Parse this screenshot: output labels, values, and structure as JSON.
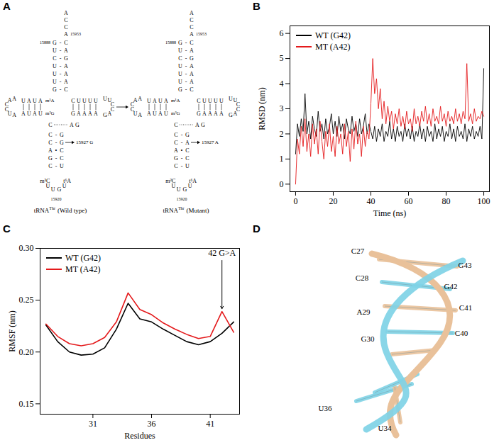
{
  "chart_data": [
    {
      "type": "line",
      "panel_label": "B",
      "xlabel": "Time (ns)",
      "ylabel": "RMSD (nm)",
      "xlim": [
        -3,
        103
      ],
      "xticks": [
        0,
        20,
        40,
        60,
        80,
        100
      ],
      "ylim": [
        -0.3,
        6.3
      ],
      "yticks": [
        0,
        1,
        2,
        3,
        4,
        5,
        6
      ],
      "grid": false,
      "legend": "top-left",
      "x": [
        0,
        1,
        2,
        3,
        4,
        5,
        6,
        7,
        8,
        9,
        10,
        11,
        12,
        13,
        14,
        15,
        16,
        17,
        18,
        19,
        20,
        21,
        22,
        23,
        24,
        25,
        26,
        27,
        28,
        29,
        30,
        31,
        32,
        33,
        34,
        35,
        36,
        37,
        38,
        39,
        40,
        41,
        42,
        43,
        44,
        45,
        46,
        47,
        48,
        49,
        50,
        51,
        52,
        53,
        54,
        55,
        56,
        57,
        58,
        59,
        60,
        61,
        62,
        63,
        64,
        65,
        66,
        67,
        68,
        69,
        70,
        71,
        72,
        73,
        74,
        75,
        76,
        77,
        78,
        79,
        80,
        81,
        82,
        83,
        84,
        85,
        86,
        87,
        88,
        89,
        90,
        91,
        92,
        93,
        94,
        95,
        96,
        97,
        98,
        99,
        100
      ],
      "series": [
        {
          "name": "WT (G42)",
          "color": "#000000",
          "values": [
            1.2,
            2.4,
            1.9,
            2.6,
            2.1,
            3.6,
            2.0,
            2.5,
            1.8,
            2.7,
            2.2,
            1.9,
            2.9,
            2.1,
            2.4,
            1.8,
            2.6,
            2.0,
            2.3,
            2.8,
            2.0,
            2.5,
            1.9,
            2.7,
            2.1,
            2.4,
            1.8,
            2.6,
            2.2,
            2.0,
            2.7,
            2.1,
            2.4,
            1.9,
            2.6,
            2.0,
            2.3,
            2.8,
            2.0,
            2.4,
            2.1,
            1.8,
            2.3,
            1.7,
            2.2,
            1.9,
            2.4,
            1.7,
            2.1,
            1.9,
            2.5,
            1.8,
            2.2,
            1.7,
            2.3,
            1.9,
            2.1,
            1.7,
            2.4,
            1.9,
            2.2,
            1.8,
            2.3,
            1.7,
            2.1,
            1.9,
            2.4,
            1.8,
            2.2,
            1.7,
            2.3,
            1.9,
            2.1,
            1.7,
            2.4,
            1.8,
            2.2,
            1.9,
            2.3,
            1.7,
            2.1,
            1.9,
            2.4,
            1.8,
            2.2,
            1.7,
            2.3,
            1.9,
            2.1,
            1.8,
            2.4,
            1.7,
            2.2,
            1.9,
            2.3,
            1.8,
            2.1,
            1.9,
            2.3,
            1.8,
            4.6
          ]
        },
        {
          "name": "MT (A42)",
          "color": "#e41a1c",
          "values": [
            0,
            1.8,
            1.2,
            2.3,
            1.5,
            2.6,
            1.3,
            2.0,
            1.1,
            2.4,
            1.6,
            2.2,
            1.2,
            2.5,
            1.7,
            1.0,
            2.1,
            1.5,
            2.4,
            1.3,
            1.9,
            1.1,
            2.3,
            1.6,
            2.0,
            1.2,
            2.4,
            1.5,
            2.1,
            0.9,
            2.2,
            1.4,
            2.5,
            1.6,
            2.0,
            1.1,
            2.3,
            1.5,
            2.1,
            1.8,
            3.2,
            5.0,
            3.6,
            4.2,
            3.0,
            3.8,
            2.6,
            3.3,
            2.4,
            3.1,
            2.5,
            2.9,
            2.2,
            2.8,
            2.4,
            3.0,
            2.3,
            2.7,
            2.2,
            2.9,
            2.4,
            2.6,
            2.1,
            3.0,
            2.4,
            2.7,
            2.3,
            2.9,
            2.5,
            3.1,
            2.4,
            2.8,
            2.3,
            3.0,
            2.5,
            2.7,
            2.4,
            3.1,
            2.5,
            2.8,
            2.3,
            2.9,
            2.5,
            2.7,
            2.4,
            3.0,
            2.5,
            2.8,
            2.4,
            2.9,
            2.6,
            4.8,
            2.5,
            2.8,
            2.4,
            3.0,
            2.5,
            2.7,
            2.6,
            2.9,
            2.7
          ]
        }
      ]
    },
    {
      "type": "line",
      "panel_label": "C",
      "xlabel": "Residues",
      "ylabel": "RMSF (nm)",
      "xlim": [
        26.5,
        43.5
      ],
      "xticks": [
        31,
        36,
        41
      ],
      "ylim": [
        0.14,
        0.3
      ],
      "yticks": [
        0.15,
        {
          "value": 0.2,
          "label": "0.20"
        },
        0.25,
        {
          "value": 0.3,
          "label": "0.30"
        }
      ],
      "grid": false,
      "legend": "top-left",
      "x": [
        27,
        28,
        29,
        30,
        31,
        32,
        33,
        34,
        35,
        36,
        37,
        38,
        39,
        40,
        41,
        42,
        43
      ],
      "series": [
        {
          "name": "WT (G42)",
          "color": "#000000",
          "values": [
            0.226,
            0.21,
            0.2,
            0.197,
            0.198,
            0.204,
            0.222,
            0.247,
            0.232,
            0.229,
            0.222,
            0.216,
            0.21,
            0.207,
            0.21,
            0.218,
            0.229
          ]
        },
        {
          "name": "MT (A42)",
          "color": "#e41a1c",
          "values": [
            0.227,
            0.215,
            0.208,
            0.206,
            0.208,
            0.214,
            0.229,
            0.257,
            0.241,
            0.236,
            0.228,
            0.222,
            0.217,
            0.213,
            0.215,
            0.239,
            0.219
          ]
        }
      ],
      "annotations": [
        {
          "text": "42 G>A",
          "x": 42
        }
      ]
    }
  ],
  "tRNA_diagram": {
    "panel_label": "A",
    "trnas": [
      {
        "name": "tRNA",
        "name_superscript": "Thr",
        "caption": "(Wild type)",
        "acceptor_tail": [
          "A",
          "C",
          "C",
          "A"
        ],
        "tail_number": "15953",
        "stem_start_number": "15888",
        "acceptor_pairs": [
          [
            "G",
            "-",
            "C"
          ],
          [
            "U",
            "-",
            "A"
          ],
          [
            "C",
            "-",
            "G"
          ],
          [
            "U",
            "-",
            "A"
          ],
          [
            "U",
            "-",
            "A"
          ],
          [
            "U",
            "-",
            "A"
          ],
          [
            "G",
            "-",
            "C"
          ]
        ],
        "d_stem_top": [
          "U",
          "A",
          "U",
          "A"
        ],
        "d_stem_bottom": [
          "A",
          "U",
          "A",
          "U"
        ],
        "d_loop": [
          "A",
          "A",
          "C",
          "C",
          "U",
          "A"
        ],
        "modified": [
          "m¹A",
          "m²G"
        ],
        "t_stem_top": [
          "C",
          "U",
          "U",
          "U",
          "U"
        ],
        "t_stem_bottom": [
          "G",
          "A",
          "A",
          "A",
          "A"
        ],
        "t_loop": [
          "U",
          "U",
          "C",
          "C",
          "A",
          "G"
        ],
        "junction": "C",
        "variable_loop": [
          "A",
          "G"
        ],
        "anticodon_pairs": [
          [
            "C",
            "-",
            "G"
          ],
          [
            "C",
            "-",
            "G",
            "15927 G"
          ],
          [
            "A",
            "•",
            "C"
          ],
          [
            "G",
            "-",
            "C"
          ],
          [
            "C",
            "-",
            "U"
          ]
        ],
        "anticodon_loop": [
          "m³C",
          "U",
          "U",
          "G",
          "U",
          "t⁶A"
        ],
        "loop_number": "15920"
      },
      {
        "name": "tRNA",
        "name_superscript": "Thr",
        "caption": "(Mutant)",
        "acceptor_tail": [
          "A",
          "C",
          "C",
          "A"
        ],
        "tail_number": "15953",
        "stem_start_number": "15888",
        "acceptor_pairs": [
          [
            "G",
            "-",
            "C"
          ],
          [
            "U",
            "-",
            "A"
          ],
          [
            "C",
            "-",
            "G"
          ],
          [
            "U",
            "-",
            "A"
          ],
          [
            "U",
            "-",
            "A"
          ],
          [
            "U",
            "-",
            "A"
          ],
          [
            "G",
            "-",
            "C"
          ]
        ],
        "d_stem_top": [
          "U",
          "A",
          "U",
          "A"
        ],
        "d_stem_bottom": [
          "A",
          "U",
          "A",
          "U"
        ],
        "d_loop": [
          "A",
          "A",
          "C",
          "C",
          "U",
          "A"
        ],
        "modified": [
          "m¹A",
          "m²G"
        ],
        "t_stem_top": [
          "C",
          "U",
          "U",
          "U",
          "U"
        ],
        "t_stem_bottom": [
          "G",
          "A",
          "A",
          "A",
          "A"
        ],
        "t_loop": [
          "U",
          "U",
          "C",
          "C",
          "A",
          "G"
        ],
        "junction": "C",
        "variable_loop": [
          "A",
          "G"
        ],
        "anticodon_pairs": [
          [
            "C",
            "-",
            "G"
          ],
          [
            "C",
            "-",
            "A",
            "15927 A"
          ],
          [
            "A",
            "•",
            "C"
          ],
          [
            "G",
            "-",
            "C"
          ],
          [
            "C",
            "-",
            "U"
          ]
        ],
        "anticodon_loop": [
          "m³C",
          "U",
          "U",
          "G",
          "U",
          "t⁶A"
        ],
        "loop_number": "15920"
      }
    ]
  },
  "structure_3d": {
    "panel_label": "D",
    "residue_labels": [
      "C27",
      "C28",
      "A29",
      "G30",
      "U34",
      "U36",
      "C40",
      "C41",
      "G42",
      "G43"
    ]
  }
}
